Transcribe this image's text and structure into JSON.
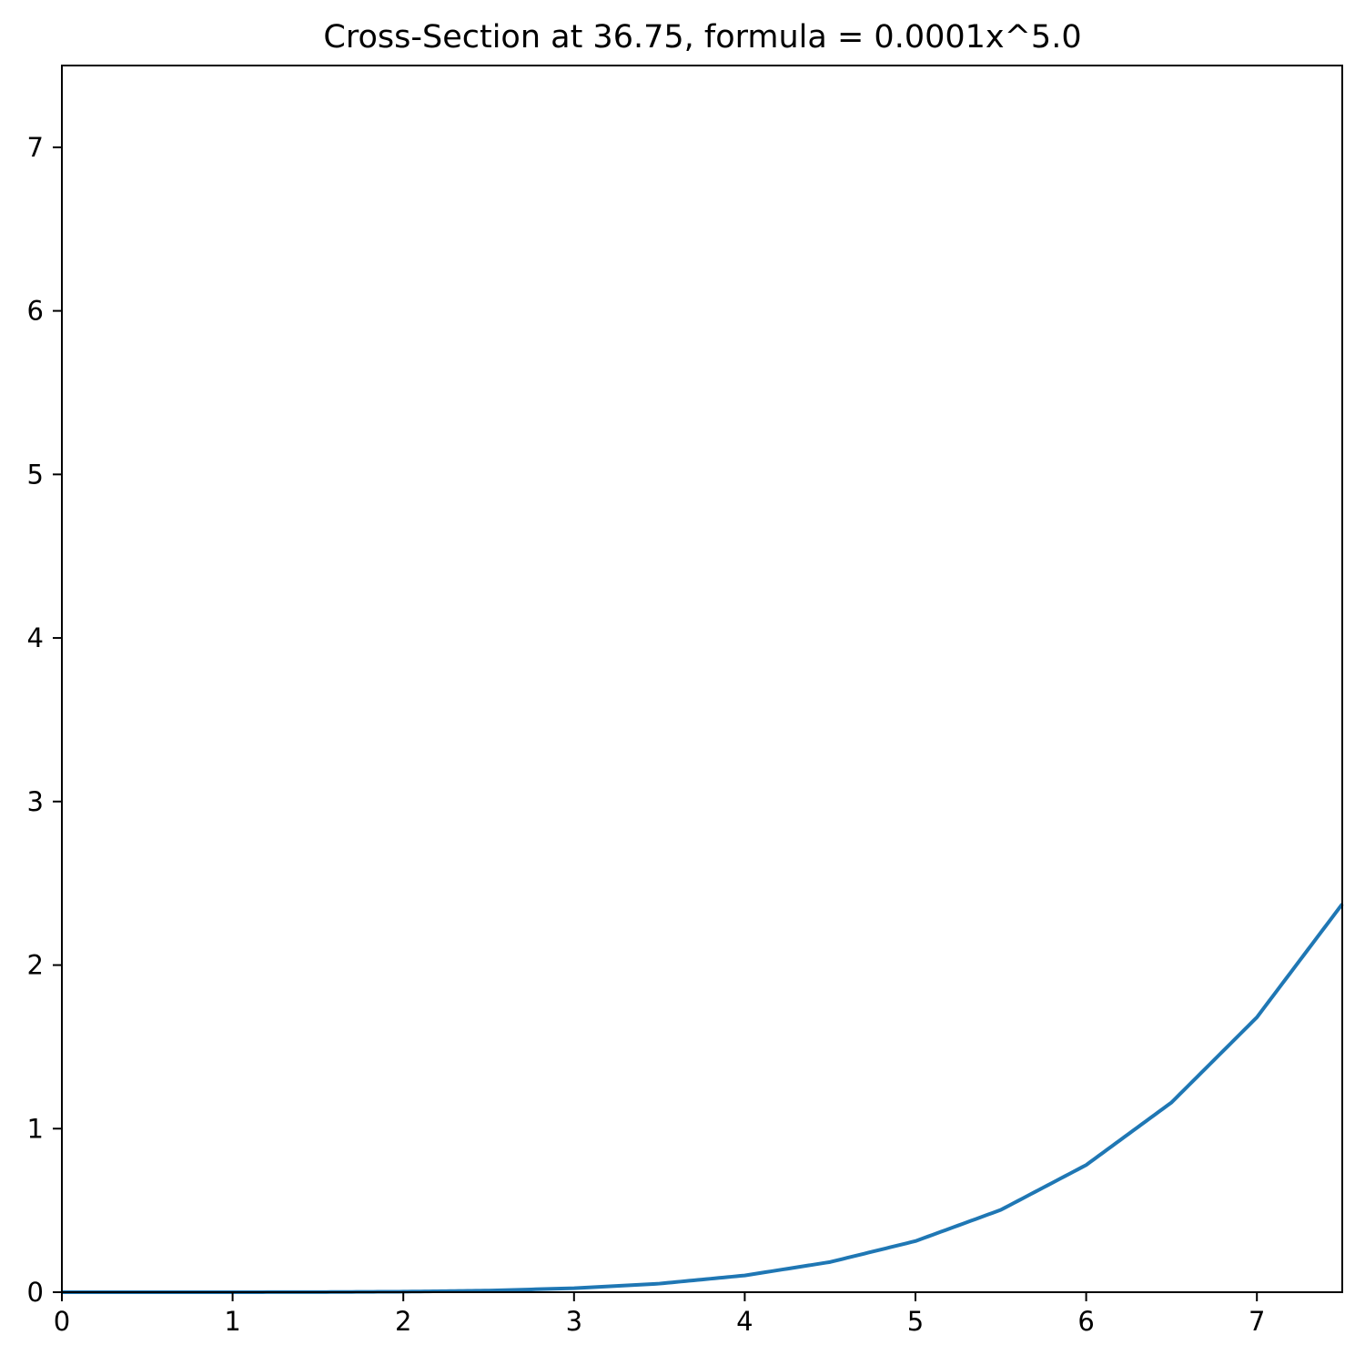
{
  "chart_data": {
    "type": "line",
    "title": "Cross-Section at 36.75, formula = 0.0001x^5.0",
    "xlabel": "",
    "ylabel": "",
    "xlim": [
      0,
      7.5
    ],
    "ylim": [
      0,
      7.5
    ],
    "x_ticks": [
      0,
      1,
      2,
      3,
      4,
      5,
      6,
      7
    ],
    "x_tick_labels": [
      "0",
      "1",
      "2",
      "3",
      "4",
      "5",
      "6",
      "7"
    ],
    "y_ticks": [
      0,
      1,
      2,
      3,
      4,
      5,
      6,
      7
    ],
    "y_tick_labels": [
      "0",
      "1",
      "2",
      "3",
      "4",
      "5",
      "6",
      "7"
    ],
    "grid": false,
    "series": [
      {
        "color": "#1f77b4",
        "x": [
          0,
          0.5,
          1,
          1.5,
          2,
          2.5,
          3,
          3.5,
          4,
          4.5,
          5,
          5.5,
          6,
          6.5,
          7,
          7.5
        ],
        "y": [
          0,
          3e-06,
          0.0001,
          0.00076,
          0.0032,
          0.0098,
          0.0243,
          0.0525,
          0.1024,
          0.1845,
          0.3125,
          0.5033,
          0.7776,
          1.1603,
          1.6807,
          2.373
        ]
      }
    ]
  }
}
